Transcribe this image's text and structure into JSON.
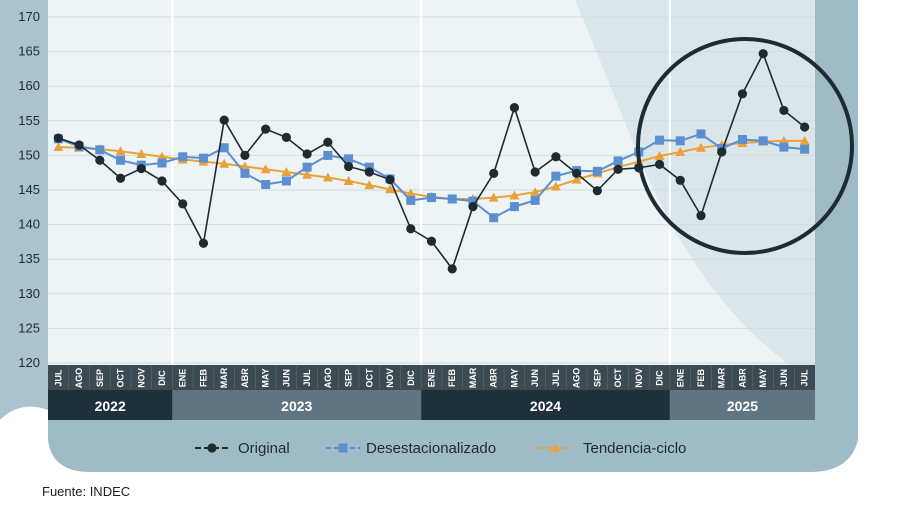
{
  "chart_data": {
    "type": "line",
    "title": "",
    "xlabel": "",
    "ylabel": "",
    "ylim": [
      120,
      170
    ],
    "yticks": [
      120,
      125,
      130,
      135,
      140,
      145,
      150,
      155,
      160,
      165,
      170
    ],
    "categories": [
      "JUL",
      "AGO",
      "SEP",
      "OCT",
      "NOV",
      "DIC",
      "ENE",
      "FEB",
      "MAR",
      "ABR",
      "MAY",
      "JUN",
      "JUL",
      "AGO",
      "SEP",
      "OCT",
      "NOV",
      "DIC",
      "ENE",
      "FEB",
      "MAR",
      "ABR",
      "MAY",
      "JUN",
      "JUL",
      "AGO",
      "SEP",
      "OCT",
      "NOV",
      "DIC",
      "ENE",
      "FEB",
      "MAR",
      "ABR",
      "MAY",
      "JUN",
      "JUL"
    ],
    "years": [
      {
        "label": "2022",
        "start": 0,
        "end": 5
      },
      {
        "label": "2023",
        "start": 6,
        "end": 17
      },
      {
        "label": "2024",
        "start": 18,
        "end": 29
      },
      {
        "label": "2025",
        "start": 30,
        "end": 36
      }
    ],
    "series": [
      {
        "name": "Original",
        "color": "#1e2b33",
        "marker": "circle",
        "values": [
          152.5,
          151.5,
          149.3,
          146.7,
          148.1,
          146.3,
          143.0,
          137.3,
          155.1,
          150.0,
          153.8,
          152.6,
          150.2,
          151.9,
          148.4,
          147.6,
          146.5,
          139.4,
          137.6,
          133.6,
          142.6,
          147.4,
          156.9,
          147.6,
          149.8,
          147.4,
          144.9,
          148.0,
          148.2,
          148.7,
          146.4,
          141.3,
          150.5,
          158.9,
          164.7,
          156.5,
          154.1
        ]
      },
      {
        "name": "Desestacionalizado",
        "color": "#5b8fd0",
        "marker": "square",
        "values": [
          152.4,
          151.3,
          150.8,
          149.3,
          148.6,
          148.9,
          149.8,
          149.6,
          151.1,
          147.4,
          145.8,
          146.3,
          148.3,
          150.0,
          149.5,
          148.3,
          146.6,
          143.5,
          143.9,
          143.7,
          143.4,
          141.0,
          142.6,
          143.5,
          147.0,
          147.8,
          147.7,
          149.2,
          150.5,
          152.2,
          152.1,
          153.1,
          151.0,
          152.3,
          152.1,
          151.2,
          150.9
        ]
      },
      {
        "name": "Tendencia-ciclo",
        "color": "#e9a23b",
        "marker": "triangle",
        "values": [
          151.2,
          151.1,
          150.9,
          150.6,
          150.2,
          149.8,
          149.4,
          149.1,
          148.8,
          148.4,
          148.0,
          147.6,
          147.2,
          146.8,
          146.3,
          145.7,
          145.1,
          144.5,
          144.0,
          143.7,
          143.7,
          143.9,
          144.2,
          144.7,
          145.5,
          146.5,
          147.4,
          148.3,
          149.1,
          149.9,
          150.5,
          151.1,
          151.5,
          151.8,
          152.0,
          152.1,
          152.1
        ]
      }
    ],
    "legend": "bottom-center",
    "grid": true,
    "highlight": {
      "type": "circle",
      "around": "2025"
    }
  },
  "source": "Fuente: INDEC"
}
